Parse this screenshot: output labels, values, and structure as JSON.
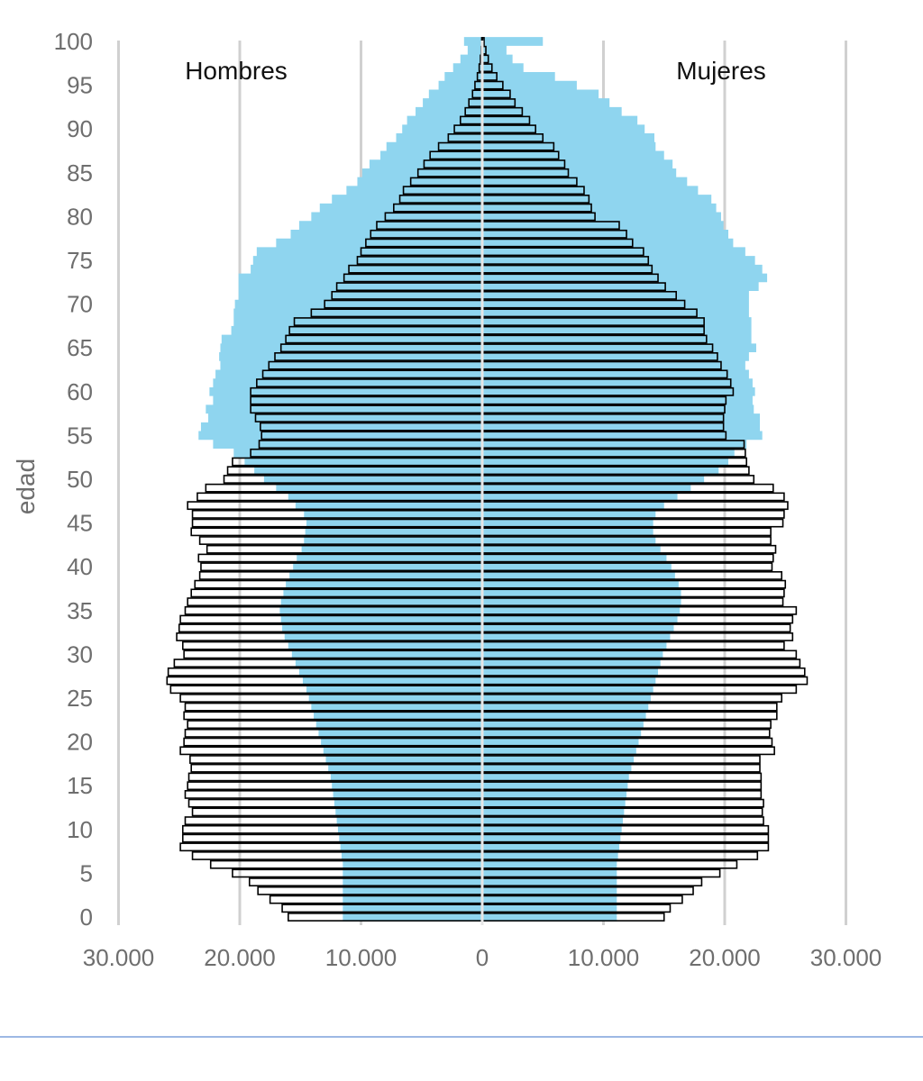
{
  "chart_data": {
    "type": "bar",
    "orientation": "horizontal",
    "ylabel": "edad",
    "left_label": "Hombres",
    "right_label": "Mujeres",
    "xlim": [
      -30000,
      30000
    ],
    "x_ticks": [
      -30000,
      -20000,
      -10000,
      0,
      10000,
      20000,
      30000
    ],
    "x_tick_labels": [
      "30.000",
      "20.000",
      "10.000",
      "0",
      "10.000",
      "20.000",
      "30.000"
    ],
    "y_ticks": [
      0,
      5,
      10,
      15,
      20,
      25,
      30,
      35,
      40,
      45,
      50,
      55,
      60,
      65,
      70,
      75,
      80,
      85,
      90,
      95,
      100
    ],
    "grid": true,
    "ages": [
      0,
      1,
      2,
      3,
      4,
      5,
      6,
      7,
      8,
      9,
      10,
      11,
      12,
      13,
      14,
      15,
      16,
      17,
      18,
      19,
      20,
      21,
      22,
      23,
      24,
      25,
      26,
      27,
      28,
      29,
      30,
      31,
      32,
      33,
      34,
      35,
      36,
      37,
      38,
      39,
      40,
      41,
      42,
      43,
      44,
      45,
      46,
      47,
      48,
      49,
      50,
      51,
      52,
      53,
      54,
      55,
      56,
      57,
      58,
      59,
      60,
      61,
      62,
      63,
      64,
      65,
      66,
      67,
      68,
      69,
      70,
      71,
      72,
      73,
      74,
      75,
      76,
      77,
      78,
      79,
      80,
      81,
      82,
      83,
      84,
      85,
      86,
      87,
      88,
      89,
      90,
      91,
      92,
      93,
      94,
      95,
      96,
      97,
      98,
      99,
      100
    ],
    "series": [
      {
        "name": "Hombres",
        "style": "outline",
        "color": "#000000",
        "values": [
          16000,
          16500,
          17500,
          18500,
          19200,
          20600,
          22400,
          23900,
          24900,
          24700,
          24700,
          24500,
          23900,
          24200,
          24500,
          24300,
          24200,
          24000,
          24100,
          24900,
          24600,
          24500,
          24300,
          24600,
          24500,
          24900,
          25700,
          26000,
          25900,
          25400,
          24600,
          24700,
          25200,
          25000,
          24900,
          24500,
          24300,
          24000,
          23700,
          23300,
          23200,
          23400,
          22700,
          23300,
          24000,
          23900,
          23900,
          24300,
          23500,
          22800,
          21300,
          21000,
          20600,
          19100,
          18400,
          18200,
          18300,
          18700,
          19100,
          19100,
          19100,
          18600,
          18100,
          17600,
          17100,
          16600,
          16200,
          15900,
          15500,
          14100,
          13000,
          12400,
          12000,
          11400,
          11000,
          10300,
          10000,
          9600,
          9200,
          8700,
          8000,
          7300,
          6800,
          6500,
          5900,
          5300,
          4800,
          4300,
          3600,
          2800,
          2300,
          1800,
          1400,
          1100,
          800,
          600,
          400,
          250,
          150,
          80,
          40
        ]
      },
      {
        "name": "Mujeres",
        "style": "outline",
        "color": "#000000",
        "values": [
          15000,
          15500,
          16500,
          17400,
          18100,
          19600,
          21000,
          22700,
          23600,
          23600,
          23600,
          23200,
          23100,
          23200,
          23000,
          23000,
          23000,
          22900,
          22900,
          24100,
          23900,
          23700,
          23800,
          24300,
          24300,
          24700,
          25900,
          26800,
          26600,
          26200,
          25900,
          24900,
          25600,
          25400,
          25600,
          25900,
          24800,
          24900,
          25000,
          24700,
          23900,
          24000,
          24200,
          23800,
          23800,
          24800,
          24900,
          25200,
          24900,
          24000,
          22400,
          22000,
          21800,
          21700,
          21600,
          20100,
          19900,
          19900,
          20000,
          20100,
          20700,
          20500,
          20200,
          19700,
          19400,
          19000,
          18500,
          18300,
          18300,
          17700,
          16700,
          16000,
          15100,
          14500,
          14000,
          13700,
          13300,
          12400,
          11900,
          11300,
          9300,
          9000,
          8800,
          8400,
          7800,
          7100,
          6800,
          6300,
          5900,
          5000,
          4400,
          3900,
          3300,
          2700,
          2300,
          1700,
          1200,
          800,
          500,
          300,
          150
        ]
      },
      {
        "style": "filled-area",
        "color": "#8fd5ef",
        "values": [
          11500,
          11500,
          11500,
          11500,
          11500,
          11500,
          11500,
          11600,
          11700,
          11800,
          11900,
          12000,
          12100,
          12200,
          12300,
          12400,
          12500,
          12700,
          12900,
          13100,
          13300,
          13500,
          13700,
          13900,
          14100,
          14300,
          14500,
          14800,
          15100,
          15400,
          15700,
          16000,
          16300,
          16500,
          16600,
          16700,
          16600,
          16400,
          16200,
          15900,
          15600,
          15300,
          14900,
          14700,
          14600,
          14500,
          14700,
          15400,
          16000,
          17000,
          18000,
          18800,
          19600,
          20500,
          22200,
          23400,
          23200,
          22600,
          22800,
          22200,
          22500,
          22200,
          22000,
          21600,
          21700,
          21600,
          21500,
          20700,
          20500,
          20500,
          20400,
          20100,
          20100,
          20100,
          19100,
          18900,
          18600,
          17000,
          15800,
          15100,
          14100,
          13400,
          12400,
          11200,
          10300,
          9900,
          9300,
          8400,
          7900,
          7100,
          6600,
          6200,
          5500,
          4900,
          4400,
          3600,
          3100,
          2400,
          1800,
          1200,
          1500
        ]
      },
      {
        "style": "filled-area",
        "color": "#8fd5ef",
        "values": [
          11100,
          11100,
          11100,
          11100,
          11100,
          11100,
          11100,
          11200,
          11300,
          11400,
          11500,
          11600,
          11700,
          11800,
          11900,
          12000,
          12100,
          12300,
          12500,
          12700,
          12900,
          13100,
          13300,
          13500,
          13700,
          13900,
          14100,
          14300,
          14500,
          14700,
          14900,
          15200,
          15500,
          15800,
          16100,
          16300,
          16400,
          16400,
          16200,
          15900,
          15600,
          15200,
          14700,
          14300,
          14100,
          14100,
          14300,
          15000,
          16100,
          17200,
          18300,
          19500,
          20300,
          20800,
          21800,
          23100,
          22900,
          22900,
          22400,
          22300,
          22500,
          22300,
          22000,
          21700,
          22000,
          22600,
          22200,
          22200,
          22200,
          22000,
          22000,
          22000,
          22800,
          23500,
          23100,
          22500,
          21700,
          20700,
          20300,
          19900,
          19700,
          19300,
          18900,
          17800,
          16900,
          16000,
          15700,
          15000,
          14300,
          14200,
          13400,
          12800,
          11500,
          10500,
          9600,
          7800,
          6000,
          3400,
          2500,
          2000,
          5000
        ]
      }
    ]
  }
}
